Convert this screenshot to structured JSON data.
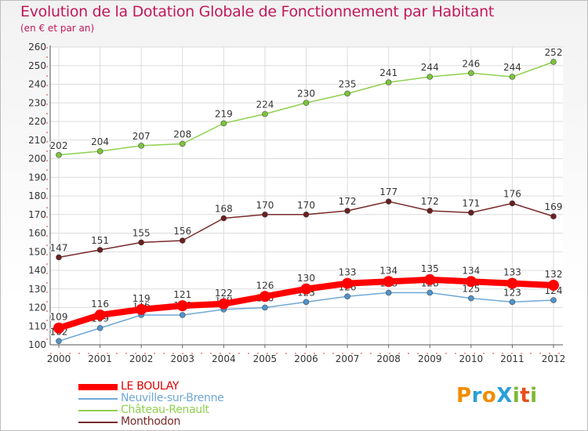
{
  "header": {
    "title": "Evolution de la Dotation Globale de Fonctionnement par Habitant",
    "subtitle": "(en € et par an)"
  },
  "logo": {
    "text": "ProXiti",
    "letters": [
      "P",
      "r",
      "o",
      "X",
      "i",
      "t",
      "i"
    ],
    "colors": [
      "#f28c00",
      "#2a9fd6",
      "#f28c00",
      "#2a9fd6",
      "#7cb82f",
      "#e94e1b",
      "#7cb82f"
    ]
  },
  "chart_data": {
    "type": "line",
    "x": [
      "2000",
      "2001",
      "2002",
      "2003",
      "2004",
      "2005",
      "2006",
      "2007",
      "2008",
      "2009",
      "2010",
      "2011",
      "2012"
    ],
    "ylim": [
      100,
      260
    ],
    "yticks": [
      100,
      110,
      120,
      130,
      140,
      150,
      160,
      170,
      180,
      190,
      200,
      210,
      220,
      230,
      240,
      250,
      260
    ],
    "grid": true,
    "legend_position": "bottom-left",
    "series": [
      {
        "name": "Château-Renault",
        "color": "#8fd14f",
        "point_color": "#7cc53a",
        "values": [
          202,
          204,
          207,
          208,
          219,
          224,
          230,
          235,
          241,
          244,
          246,
          244,
          252
        ]
      },
      {
        "name": "Monthodon",
        "color": "#7a2a2a",
        "point_color": "#6b1f1f",
        "values": [
          147,
          151,
          155,
          156,
          168,
          170,
          170,
          172,
          177,
          172,
          171,
          176,
          169
        ]
      },
      {
        "name": "Neuville-sur-Brenne",
        "color": "#6fa8d6",
        "point_color": "#4f94cc",
        "values": [
          102,
          109,
          116,
          116,
          119,
          120,
          123,
          126,
          128,
          128,
          125,
          123,
          124
        ]
      },
      {
        "name": "LE BOULAY",
        "color": "#ff0000",
        "point_color": "#ff0000",
        "highlight": true,
        "values": [
          109,
          116,
          119,
          121,
          122,
          126,
          130,
          133,
          134,
          135,
          134,
          133,
          132
        ]
      }
    ],
    "legend_order": [
      "LE BOULAY",
      "Neuville-sur-Brenne",
      "Château-Renault",
      "Monthodon"
    ]
  }
}
